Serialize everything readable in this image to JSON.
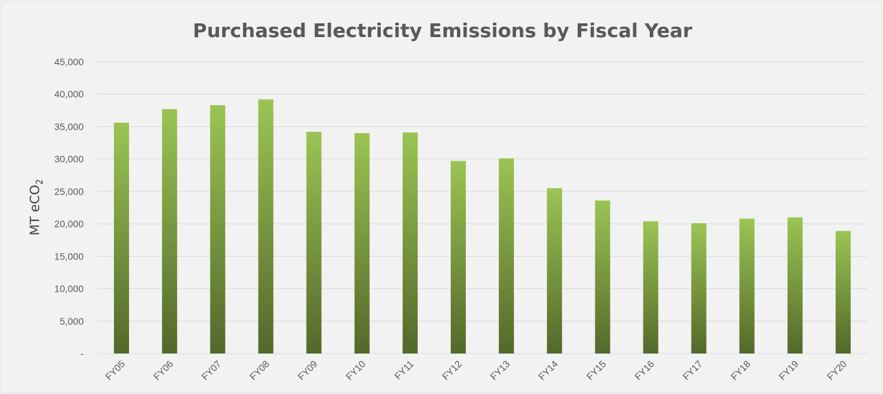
{
  "chart_data": {
    "type": "bar",
    "title": "Purchased Electricity Emissions by Fiscal Year",
    "ylabel_main": "MT eCO",
    "ylabel_sub": "2",
    "xlabel": "",
    "categories": [
      "FY05",
      "FY06",
      "FY07",
      "FY08",
      "FY09",
      "FY10",
      "FY11",
      "FY12",
      "FY13",
      "FY14",
      "FY15",
      "FY16",
      "FY17",
      "FY18",
      "FY19",
      "FY20"
    ],
    "values": [
      35600,
      37700,
      38300,
      39200,
      34200,
      34000,
      34100,
      29700,
      30100,
      25500,
      23600,
      20400,
      20100,
      20800,
      21000,
      18900
    ],
    "ylim": [
      0,
      45000
    ],
    "yticks": [
      0,
      5000,
      10000,
      15000,
      20000,
      25000,
      30000,
      35000,
      40000,
      45000
    ],
    "ytick_labels": [
      "-",
      "5,000",
      "10,000",
      "15,000",
      "20,000",
      "25,000",
      "30,000",
      "35,000",
      "40,000",
      "45,000"
    ],
    "grid": true,
    "legend": "none",
    "colors": {
      "bar_top": "#9bc454",
      "bar_bottom": "#52692a",
      "grid": "#d9d9d9",
      "background": "#f2f2f2"
    }
  }
}
